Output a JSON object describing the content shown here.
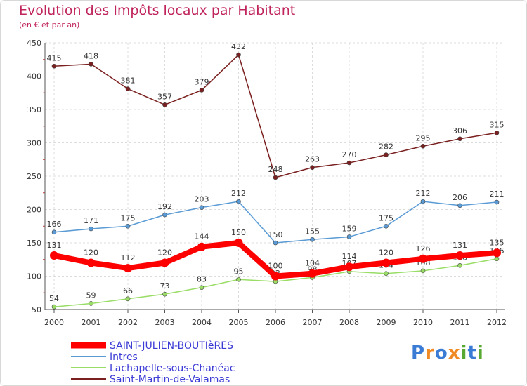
{
  "chart_data": {
    "type": "line",
    "title": "Evolution des Impôts locaux par Habitant",
    "subtitle": "(en € et par an)",
    "xlabel": "",
    "ylabel": "",
    "x": [
      "2000",
      "2001",
      "2002",
      "2003",
      "2004",
      "2005",
      "2006",
      "2007",
      "2008",
      "2009",
      "2010",
      "2011",
      "2012"
    ],
    "ylim": [
      50,
      450
    ],
    "yticks": [
      50,
      100,
      150,
      200,
      250,
      300,
      350,
      400,
      450
    ],
    "grid": true,
    "legend_position": "bottom-left",
    "series": [
      {
        "name": "Saint-Martin-de-Valamas",
        "color": "#7a2020",
        "values": [
          415,
          418,
          381,
          357,
          379,
          432,
          248,
          263,
          270,
          282,
          295,
          306,
          315
        ]
      },
      {
        "name": "Intres",
        "color": "#5b9bd5",
        "values": [
          166,
          171,
          175,
          192,
          203,
          212,
          150,
          155,
          159,
          175,
          212,
          206,
          211
        ]
      },
      {
        "name": "Lachapelle-sous-Chanéac",
        "color": "#99dd66",
        "values": [
          54,
          59,
          66,
          73,
          83,
          95,
          92,
          98,
          107,
          104,
          108,
          116,
          126
        ]
      },
      {
        "name": "SAINT-JULIEN-BOUTIèRES",
        "color": "#ff0000",
        "values": [
          131,
          120,
          112,
          120,
          144,
          150,
          100,
          104,
          114,
          120,
          126,
          131,
          135
        ]
      }
    ],
    "legend_order": [
      "SAINT-JULIEN-BOUTIèRES",
      "Intres",
      "Lachapelle-sous-Chanéac",
      "Saint-Martin-de-Valamas"
    ]
  },
  "logo": {
    "text": "Proxiti",
    "letters": [
      "P",
      "r",
      "o",
      "x",
      "i",
      "t",
      "i"
    ],
    "colors": [
      "#3a7bd5",
      "#f08a24",
      "#3a7bd5",
      "#f08a24",
      "#58a832",
      "#3a7bd5",
      "#58a832"
    ]
  }
}
